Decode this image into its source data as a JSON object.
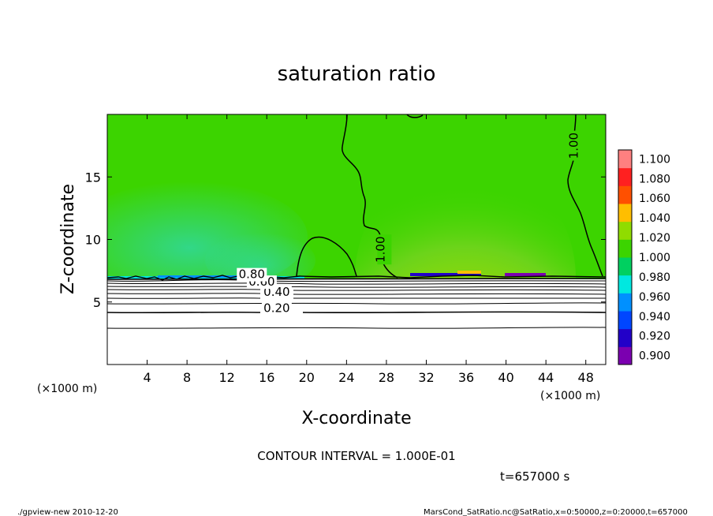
{
  "chart_data": {
    "type": "heatmap",
    "title": "saturation ratio",
    "xlabel": "X-coordinate",
    "ylabel": "Z-coordinate",
    "x_unit_left": "(×1000 m)",
    "x_unit_right": "(×1000 m)",
    "xlim": [
      0,
      50
    ],
    "ylim": [
      0,
      20
    ],
    "xticks": [
      4,
      8,
      12,
      16,
      20,
      24,
      28,
      32,
      36,
      40,
      44,
      48
    ],
    "yticks": [
      5,
      10,
      15
    ],
    "colorbar": {
      "levels": [
        0.9,
        0.92,
        0.94,
        0.96,
        0.98,
        1.0,
        1.02,
        1.04,
        1.06,
        1.08,
        1.1
      ],
      "labels": [
        "0.900",
        "0.920",
        "0.940",
        "0.960",
        "0.980",
        "1.000",
        "1.020",
        "1.040",
        "1.060",
        "1.080",
        "1.100"
      ],
      "colors": [
        "#7b00b0",
        "#2200c8",
        "#0046ff",
        "#0090ff",
        "#00e8e0",
        "#00d060",
        "#3cd400",
        "#90dc00",
        "#ffbe00",
        "#ff5000",
        "#ff2020",
        "#ff8080"
      ]
    },
    "contour_labels": [
      {
        "text": "0.20",
        "x": 17.0,
        "z": 4.2
      },
      {
        "text": "0.40",
        "x": 17.0,
        "z": 5.5
      },
      {
        "text": "0.60",
        "x": 15.5,
        "z": 6.3
      },
      {
        "text": "0.80",
        "x": 14.5,
        "z": 6.9
      },
      {
        "text": "1.00",
        "x": 47.2,
        "z": 17.5
      },
      {
        "text": "1.00",
        "x": 27.8,
        "z": 9.2
      }
    ],
    "contour_interval_text": "CONTOUR INTERVAL = 1.000E-01",
    "time_text": "t=657000 s"
  },
  "footer": {
    "left": "./gpview-new  2010-12-20",
    "right": "MarsCond_SatRatio.nc@SatRatio,x=0:50000,z=0:20000,t=657000"
  }
}
